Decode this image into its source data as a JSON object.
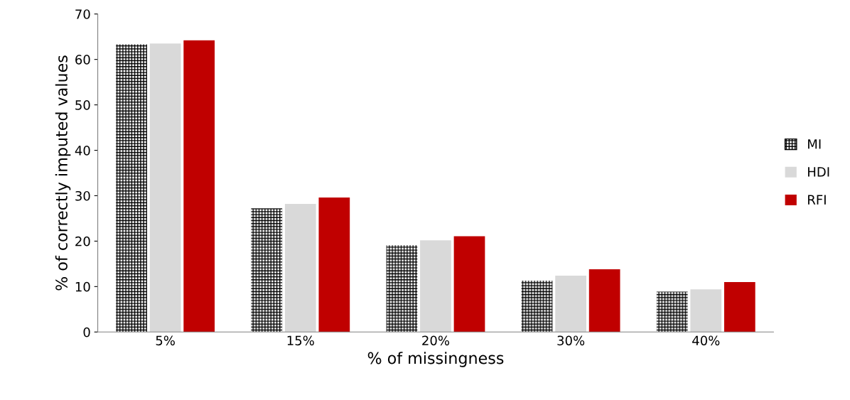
{
  "chart_data": {
    "type": "bar",
    "xlabel": "% of missingness",
    "ylabel": "% of correctly imputed values",
    "categories": [
      "5%",
      "15%",
      "20%",
      "30%",
      "40%"
    ],
    "series": [
      {
        "name": "MI",
        "color": "#000000",
        "values": [
          63.3,
          27.2,
          19.1,
          11.3,
          8.9
        ]
      },
      {
        "name": "HDI",
        "color": "#d9d9d9",
        "values": [
          63.5,
          28.2,
          20.2,
          12.4,
          9.4
        ]
      },
      {
        "name": "RFI",
        "color": "#c00000",
        "values": [
          64.2,
          29.6,
          21.1,
          13.8,
          11.0
        ]
      }
    ],
    "ylim": [
      0,
      70
    ],
    "yticks": [
      0,
      10,
      20,
      30,
      40,
      50,
      60,
      70
    ],
    "grid": false,
    "legend": "right"
  }
}
